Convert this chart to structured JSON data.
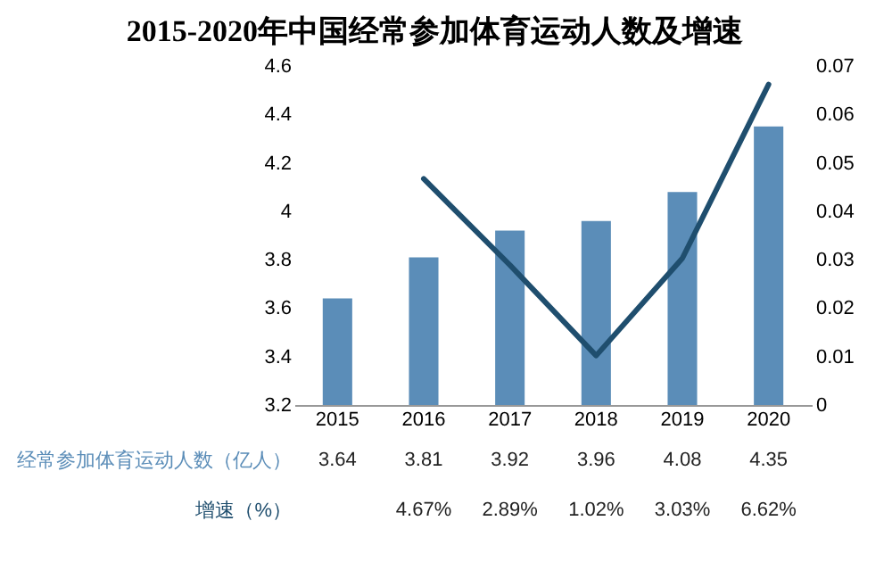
{
  "chart_data": {
    "type": "bar",
    "title": "2015-2020年中国经常参加体育运动人数及增速",
    "categories": [
      "2015",
      "2016",
      "2017",
      "2018",
      "2019",
      "2020"
    ],
    "series": [
      {
        "name": "经常参加体育运动人数（亿人）",
        "color": "#5b8db8",
        "values": [
          3.64,
          3.81,
          3.92,
          3.96,
          4.08,
          4.35
        ],
        "value_labels": [
          "3.64",
          "3.81",
          "3.92",
          "3.96",
          "4.08",
          "4.35"
        ]
      },
      {
        "name": "增速（%）",
        "type": "line",
        "axis": "y2",
        "color": "#1f4e6e",
        "values": [
          null,
          0.0467,
          0.0289,
          0.0102,
          0.0303,
          0.0662
        ],
        "value_labels": [
          null,
          "4.67%",
          "2.89%",
          "1.02%",
          "3.03%",
          "6.62%"
        ]
      }
    ],
    "ylim": [
      3.2,
      4.6
    ],
    "yticks": [
      3.2,
      3.4,
      3.6,
      3.8,
      4,
      4.2,
      4.4,
      4.6
    ],
    "y2lim": [
      0,
      0.07
    ],
    "y2ticks": [
      0,
      0.01,
      0.02,
      0.03,
      0.04,
      0.05,
      0.06,
      0.07
    ],
    "grid": false
  }
}
